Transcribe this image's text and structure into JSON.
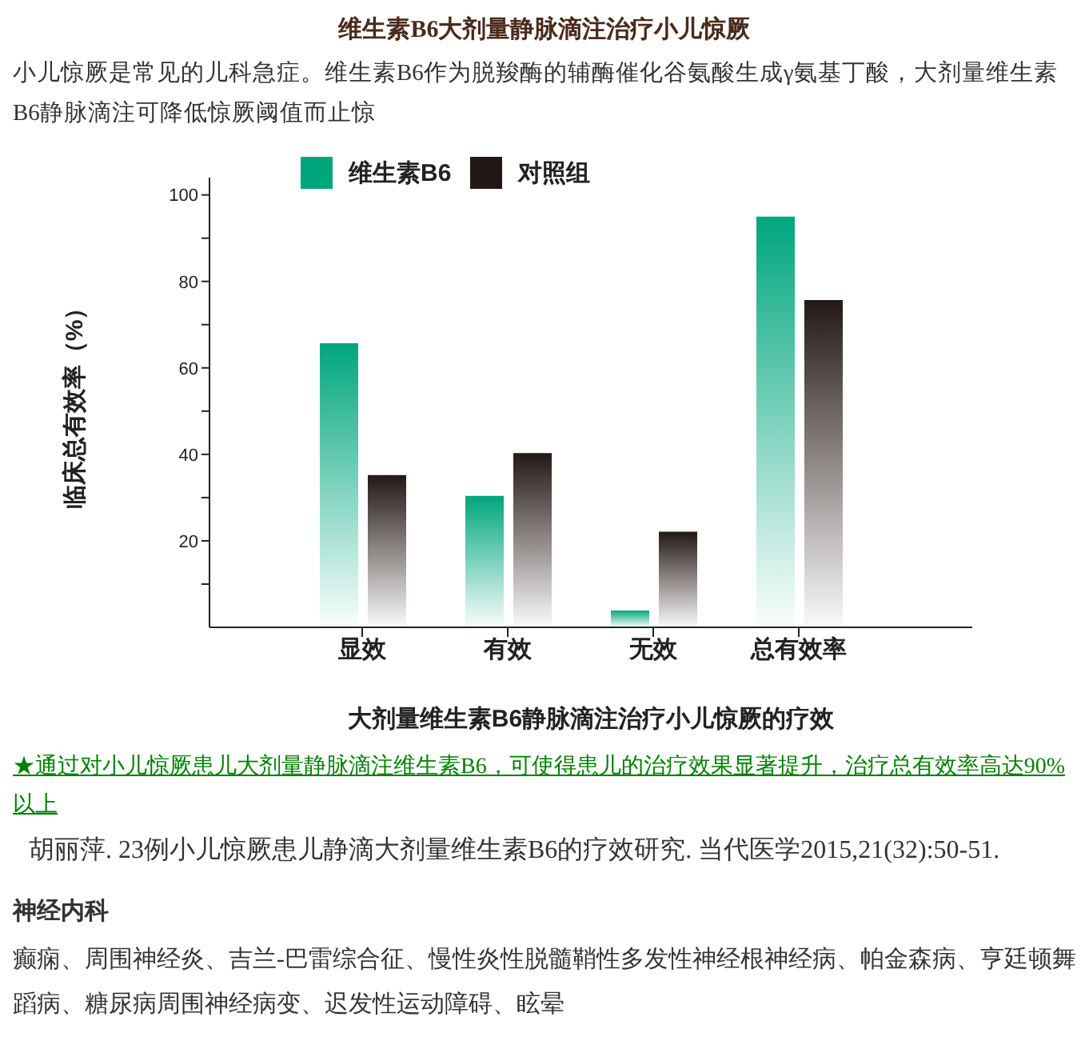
{
  "chart_data": {
    "type": "bar",
    "title": "维生素B6大剂量静脉滴注治疗小儿惊厥",
    "subtitle": "小儿惊厥是常见的儿科急症。维生素B6作为脱羧酶的辅酶催化谷氨酸生成γ氨基丁酸，大剂量维生素B6静脉滴注可降低惊厥阈值而止惊",
    "xlabel": "大剂量维生素B6静脉滴注治疗小儿惊厥的疗效",
    "ylabel": "临床总有效率（%）",
    "categories": [
      "显效",
      "有效",
      "无效",
      "总有效率"
    ],
    "series": [
      {
        "name": "维生素B6",
        "color": "#00a67e",
        "values": [
          65.7,
          30.4,
          3.9,
          95.0
        ]
      },
      {
        "name": "对照组",
        "color": "#231815",
        "values": [
          35.2,
          40.3,
          22.1,
          75.7
        ]
      }
    ],
    "ylim": [
      0,
      104
    ],
    "yticks": [
      {
        "value": 10,
        "label": null
      },
      20,
      {
        "value": 30,
        "label": null
      },
      40,
      {
        "value": 50,
        "label": null
      },
      60,
      {
        "value": 70,
        "label": null
      },
      80,
      {
        "value": 90,
        "label": null
      },
      100
    ],
    "legend": "top left",
    "annotations": [
      "★通过对小儿惊厥患儿大剂量静脉滴注维生素B6，可使得患儿的治疗效果显著提升，治疗总有效率高达90%以上",
      "胡丽萍. 23例小儿惊厥患儿静滴大剂量维生素B6的疗效研究. 当代医学2015,21(32):50-51.",
      "神经内科",
      "癫痫、周围神经炎、吉兰-巴雷综合征、慢性炎性脱髓鞘性多发性神经根神经病、帕金森病、亨廷顿舞蹈病、糖尿病周围神经病变、迟发性运动障碍、眩晕"
    ]
  }
}
